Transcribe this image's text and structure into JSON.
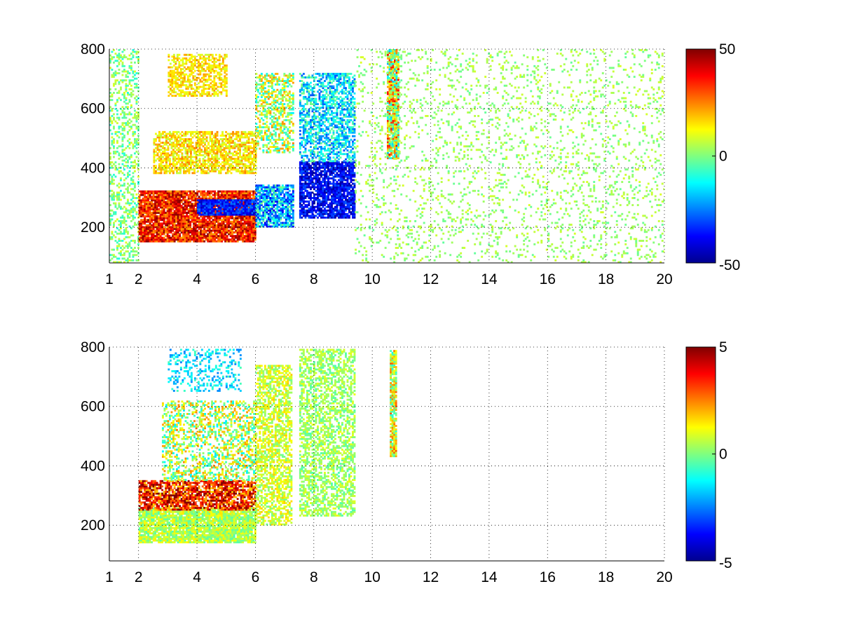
{
  "chart_data": [
    {
      "type": "heatmap",
      "title": "",
      "xlabel": "",
      "ylabel": "",
      "xlim": [
        1,
        20
      ],
      "ylim": [
        80,
        800
      ],
      "x_ticks": [
        {
          "value": 1,
          "label": "1"
        },
        {
          "value": 2,
          "label": "2"
        },
        {
          "value": 4,
          "label": "4"
        },
        {
          "value": 6,
          "label": "6"
        },
        {
          "value": 8,
          "label": "8"
        },
        {
          "value": 10,
          "label": "10"
        },
        {
          "value": 12,
          "label": "12"
        },
        {
          "value": 14,
          "label": "14"
        },
        {
          "value": 16,
          "label": "16"
        },
        {
          "value": 18,
          "label": "18"
        },
        {
          "value": 20,
          "label": "20"
        }
      ],
      "y_ticks": [
        {
          "value": 200,
          "label": "200"
        },
        {
          "value": 400,
          "label": "400"
        },
        {
          "value": 600,
          "label": "600"
        },
        {
          "value": 800,
          "label": "800"
        }
      ],
      "grid": true,
      "grid_style": "dotted",
      "colormap": "jet",
      "clim": [
        -50,
        50
      ],
      "colorbar": {
        "placement": "right",
        "ticks": [
          {
            "value": 50,
            "label": "50"
          },
          {
            "value": 0,
            "label": "0"
          },
          {
            "value": -50,
            "label": "-50"
          }
        ]
      },
      "regions": [
        {
          "x": [
            1.0,
            2.0
          ],
          "y": [
            80,
            800
          ],
          "density": 0.35,
          "value_mean": 0,
          "value_spread": 10
        },
        {
          "x": [
            2.0,
            6.0
          ],
          "y": [
            150,
            320
          ],
          "density": 0.9,
          "value_mean": 35,
          "value_spread": 15
        },
        {
          "x": [
            2.5,
            6.0
          ],
          "y": [
            380,
            520
          ],
          "density": 0.7,
          "value_mean": 15,
          "value_spread": 10
        },
        {
          "x": [
            3.0,
            5.0
          ],
          "y": [
            640,
            780
          ],
          "density": 0.6,
          "value_mean": 15,
          "value_spread": 8
        },
        {
          "x": [
            4.0,
            6.0
          ],
          "y": [
            240,
            290
          ],
          "density": 0.9,
          "value_mean": -35,
          "value_spread": 10
        },
        {
          "x": [
            6.0,
            7.3
          ],
          "y": [
            200,
            340
          ],
          "density": 0.8,
          "value_mean": -20,
          "value_spread": 20
        },
        {
          "x": [
            6.0,
            7.3
          ],
          "y": [
            450,
            720
          ],
          "density": 0.5,
          "value_mean": 5,
          "value_spread": 20
        },
        {
          "x": [
            7.5,
            9.4
          ],
          "y": [
            230,
            420
          ],
          "density": 0.85,
          "value_mean": -38,
          "value_spread": 10
        },
        {
          "x": [
            7.5,
            9.4
          ],
          "y": [
            420,
            720
          ],
          "density": 0.6,
          "value_mean": -15,
          "value_spread": 15
        },
        {
          "x": [
            10.5,
            10.9
          ],
          "y": [
            430,
            800
          ],
          "density": 0.9,
          "value_mean": 10,
          "value_spread": 30
        },
        {
          "x": [
            9.4,
            20.0
          ],
          "y": [
            80,
            800
          ],
          "density": 0.12,
          "value_mean": 3,
          "value_spread": 6
        }
      ]
    },
    {
      "type": "heatmap",
      "title": "",
      "xlabel": "",
      "ylabel": "",
      "xlim": [
        1,
        20
      ],
      "ylim": [
        80,
        800
      ],
      "x_ticks": [
        {
          "value": 1,
          "label": "1"
        },
        {
          "value": 2,
          "label": "2"
        },
        {
          "value": 4,
          "label": "4"
        },
        {
          "value": 6,
          "label": "6"
        },
        {
          "value": 8,
          "label": "8"
        },
        {
          "value": 10,
          "label": "10"
        },
        {
          "value": 12,
          "label": "12"
        },
        {
          "value": 14,
          "label": "14"
        },
        {
          "value": 16,
          "label": "16"
        },
        {
          "value": 18,
          "label": "18"
        },
        {
          "value": 20,
          "label": "20"
        }
      ],
      "y_ticks": [
        {
          "value": 200,
          "label": "200"
        },
        {
          "value": 400,
          "label": "400"
        },
        {
          "value": 600,
          "label": "600"
        },
        {
          "value": 800,
          "label": "800"
        }
      ],
      "grid": true,
      "grid_style": "dotted",
      "colormap": "jet",
      "clim": [
        -5,
        5
      ],
      "colorbar": {
        "placement": "right",
        "ticks": [
          {
            "value": 5,
            "label": "5"
          },
          {
            "value": 0,
            "label": "0"
          },
          {
            "value": -5,
            "label": "-5"
          }
        ]
      },
      "regions": [
        {
          "x": [
            2.0,
            6.0
          ],
          "y": [
            140,
            260
          ],
          "density": 0.9,
          "value_mean": 0.5,
          "value_spread": 1.0
        },
        {
          "x": [
            2.0,
            6.0
          ],
          "y": [
            250,
            350
          ],
          "density": 0.8,
          "value_mean": 3.5,
          "value_spread": 2.0
        },
        {
          "x": [
            2.8,
            6.0
          ],
          "y": [
            350,
            620
          ],
          "density": 0.45,
          "value_mean": 0.5,
          "value_spread": 2.0
        },
        {
          "x": [
            3.0,
            5.5
          ],
          "y": [
            650,
            790
          ],
          "density": 0.3,
          "value_mean": -1.5,
          "value_spread": 1.0
        },
        {
          "x": [
            6.0,
            7.2
          ],
          "y": [
            200,
            740
          ],
          "density": 0.6,
          "value_mean": 0.8,
          "value_spread": 1.0
        },
        {
          "x": [
            7.5,
            9.4
          ],
          "y": [
            230,
            790
          ],
          "density": 0.55,
          "value_mean": 0.3,
          "value_spread": 0.8
        },
        {
          "x": [
            10.6,
            10.8
          ],
          "y": [
            430,
            790
          ],
          "density": 0.9,
          "value_mean": 1.0,
          "value_spread": 2.0
        }
      ]
    }
  ]
}
